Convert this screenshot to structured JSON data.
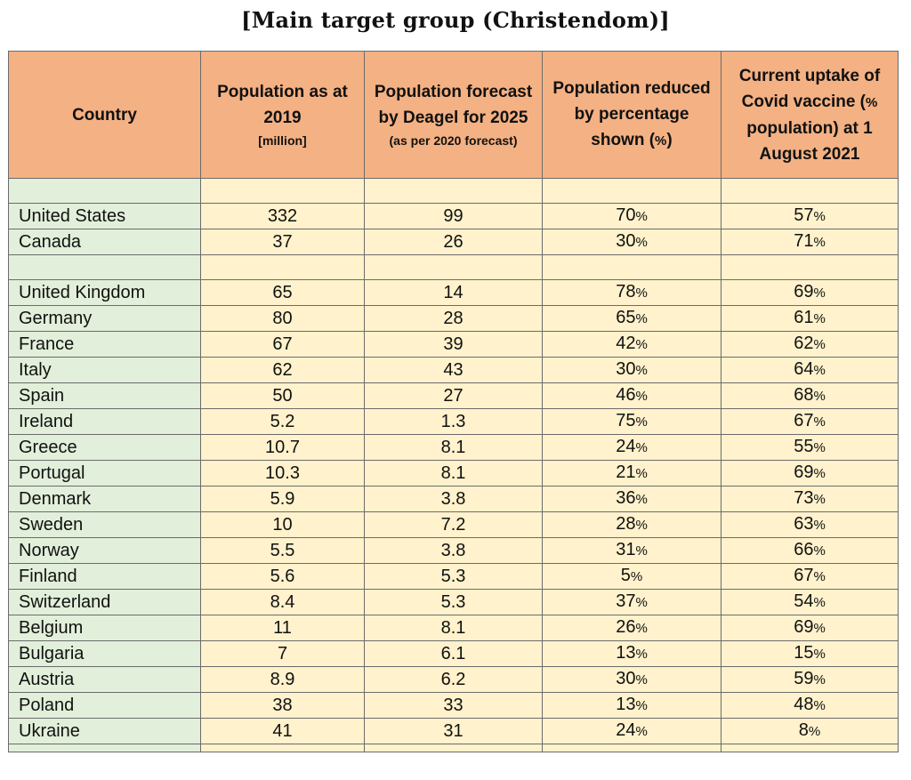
{
  "title": "[Main target group (Christendom)]",
  "headers": {
    "country": "Country",
    "pop2019": "Population as at 2019",
    "pop2019_unit": "[million]",
    "forecast": "Population forecast by Deagel for 2025",
    "forecast_note": "(as per 2020 forecast)",
    "reduced": "Population reduced by percentage shown (",
    "reduced_pct": "%",
    "reduced_close": ")",
    "uptake_a": "Current uptake of Covid vaccine (",
    "uptake_pct": "%",
    "uptake_b": " population) at 1 August 2021"
  },
  "rows_group1": [
    {
      "country": "United States",
      "pop2019": "332",
      "forecast": "99",
      "reduced": "70",
      "uptake": "57"
    },
    {
      "country": "Canada",
      "pop2019": "37",
      "forecast": "26",
      "reduced": "30",
      "uptake": "71"
    }
  ],
  "rows_group2": [
    {
      "country": "United Kingdom",
      "pop2019": "65",
      "forecast": "14",
      "reduced": "78",
      "uptake": "69"
    },
    {
      "country": "Germany",
      "pop2019": "80",
      "forecast": "28",
      "reduced": "65",
      "uptake": "61"
    },
    {
      "country": "France",
      "pop2019": "67",
      "forecast": "39",
      "reduced": "42",
      "uptake": "62"
    },
    {
      "country": "Italy",
      "pop2019": "62",
      "forecast": "43",
      "reduced": "30",
      "uptake": "64"
    },
    {
      "country": "Spain",
      "pop2019": "50",
      "forecast": "27",
      "reduced": "46",
      "uptake": "68"
    },
    {
      "country": "Ireland",
      "pop2019": "5.2",
      "forecast": "1.3",
      "reduced": "75",
      "uptake": "67"
    },
    {
      "country": "Greece",
      "pop2019": "10.7",
      "forecast": "8.1",
      "reduced": "24",
      "uptake": "55"
    },
    {
      "country": "Portugal",
      "pop2019": "10.3",
      "forecast": "8.1",
      "reduced": "21",
      "uptake": "69"
    },
    {
      "country": "Denmark",
      "pop2019": "5.9",
      "forecast": "3.8",
      "reduced": "36",
      "uptake": "73"
    },
    {
      "country": "Sweden",
      "pop2019": "10",
      "forecast": "7.2",
      "reduced": "28",
      "uptake": "63"
    },
    {
      "country": "Norway",
      "pop2019": "5.5",
      "forecast": "3.8",
      "reduced": "31",
      "uptake": "66"
    },
    {
      "country": "Finland",
      "pop2019": "5.6",
      "forecast": "5.3",
      "reduced": "5",
      "uptake": "67"
    },
    {
      "country": "Switzerland",
      "pop2019": "8.4",
      "forecast": "5.3",
      "reduced": "37",
      "uptake": "54"
    },
    {
      "country": "Belgium",
      "pop2019": "11",
      "forecast": "8.1",
      "reduced": "26",
      "uptake": "69"
    },
    {
      "country": "Bulgaria",
      "pop2019": "7",
      "forecast": "6.1",
      "reduced": "13",
      "uptake": "15"
    },
    {
      "country": "Austria",
      "pop2019": "8.9",
      "forecast": "6.2",
      "reduced": "30",
      "uptake": "59"
    },
    {
      "country": "Poland",
      "pop2019": "38",
      "forecast": "33",
      "reduced": "13",
      "uptake": "48"
    },
    {
      "country": "Ukraine",
      "pop2019": "41",
      "forecast": "31",
      "reduced": "24",
      "uptake": "8"
    }
  ],
  "percent_sign": "%",
  "colors": {
    "header": "#f4b183",
    "country_cells": "#e2efda",
    "data_cells": "#fff2cc",
    "borders": "#6b6b6b"
  }
}
